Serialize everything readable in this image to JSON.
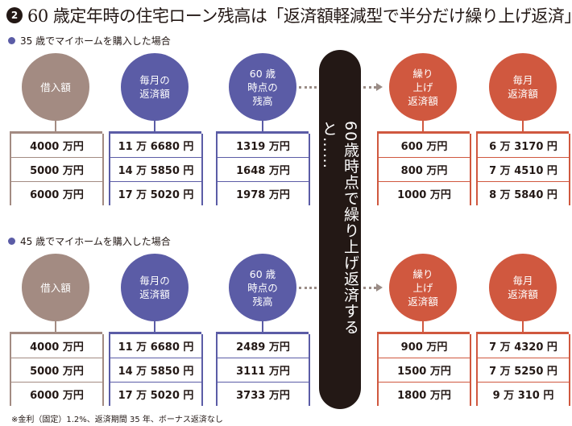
{
  "title": {
    "number": "2",
    "text": "60 歳定年時の住宅ローン残高は「返済額軽減型で半分だけ繰り上げ返済」"
  },
  "colors": {
    "brown": "#a38b82",
    "blue": "#5b5ca6",
    "red": "#d0583f",
    "dark": "#231815"
  },
  "headers": {
    "loan": "借入額",
    "monthly_line1": "毎月の",
    "monthly_line2": "返済額",
    "bal_line1": "60 歳",
    "bal_line2": "時点の",
    "bal_line3": "残高",
    "prepay_line1": "繰り",
    "prepay_line2": "上げ",
    "prepay_line3": "返済額",
    "newmonthly_line1": "毎月",
    "newmonthly_line2": "返済額"
  },
  "center_label": "60歳時点で繰り上げ返済すると……",
  "sections": [
    {
      "label": "35 歳でマイホームを購入した場合",
      "loan": [
        "4000 万円",
        "5000 万円",
        "6000 万円"
      ],
      "monthly": [
        "11 万 6680 円",
        "14 万 5850 円",
        "17 万 5020 円"
      ],
      "balance": [
        "1319 万円",
        "1648 万円",
        "1978 万円"
      ],
      "prepay": [
        "600 万円",
        "800 万円",
        "1000 万円"
      ],
      "new_monthly": [
        "6 万 3170 円",
        "7 万 4510 円",
        "8 万 5840 円"
      ]
    },
    {
      "label": "45 歳でマイホームを購入した場合",
      "loan": [
        "4000 万円",
        "5000 万円",
        "6000 万円"
      ],
      "monthly": [
        "11 万 6680 円",
        "14 万 5850 円",
        "17 万 5020 円"
      ],
      "balance": [
        "2489 万円",
        "3111 万円",
        "3733 万円"
      ],
      "prepay": [
        "900 万円",
        "1500 万円",
        "1800 万円"
      ],
      "new_monthly": [
        "7 万 4320 円",
        "7 万 5250 円",
        "9 万 310 円"
      ]
    }
  ],
  "footnote": "※金利（固定）1.2%、返済期間 35 年、ボーナス返済なし"
}
